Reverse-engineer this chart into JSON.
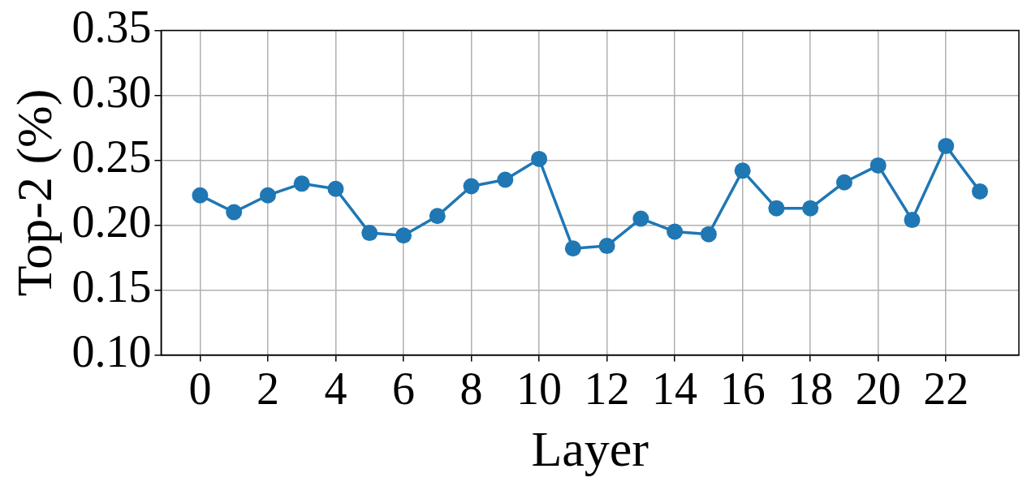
{
  "chart_data": {
    "type": "line",
    "xlabel": "Layer",
    "ylabel": "Top-2 (%)",
    "x": [
      0,
      1,
      2,
      3,
      4,
      5,
      6,
      7,
      8,
      9,
      10,
      11,
      12,
      13,
      14,
      15,
      16,
      17,
      18,
      19,
      20,
      21,
      22,
      23
    ],
    "series": [
      {
        "color": "#1f77b4",
        "values": [
          0.223,
          0.21,
          0.223,
          0.232,
          0.228,
          0.194,
          0.192,
          0.207,
          0.23,
          0.235,
          0.251,
          0.182,
          0.184,
          0.205,
          0.195,
          0.193,
          0.242,
          0.213,
          0.213,
          0.233,
          0.246,
          0.204,
          0.261,
          0.226
        ]
      }
    ],
    "xlim": [
      -1.15,
      24.15
    ],
    "xticks": [
      0,
      2,
      4,
      6,
      8,
      10,
      12,
      14,
      16,
      18,
      20,
      22
    ],
    "ylim": [
      0.1,
      0.35
    ],
    "yticks": [
      {
        "value": 0.1,
        "label": "0.10"
      },
      {
        "value": 0.15,
        "label": "0.15"
      },
      {
        "value": 0.2,
        "label": "0.20"
      },
      {
        "value": 0.25,
        "label": "0.25"
      },
      {
        "value": 0.3,
        "label": "0.30"
      },
      {
        "value": 0.35,
        "label": "0.35"
      }
    ],
    "grid": true,
    "marker": "circle",
    "line_style": "solid",
    "legend": false
  }
}
